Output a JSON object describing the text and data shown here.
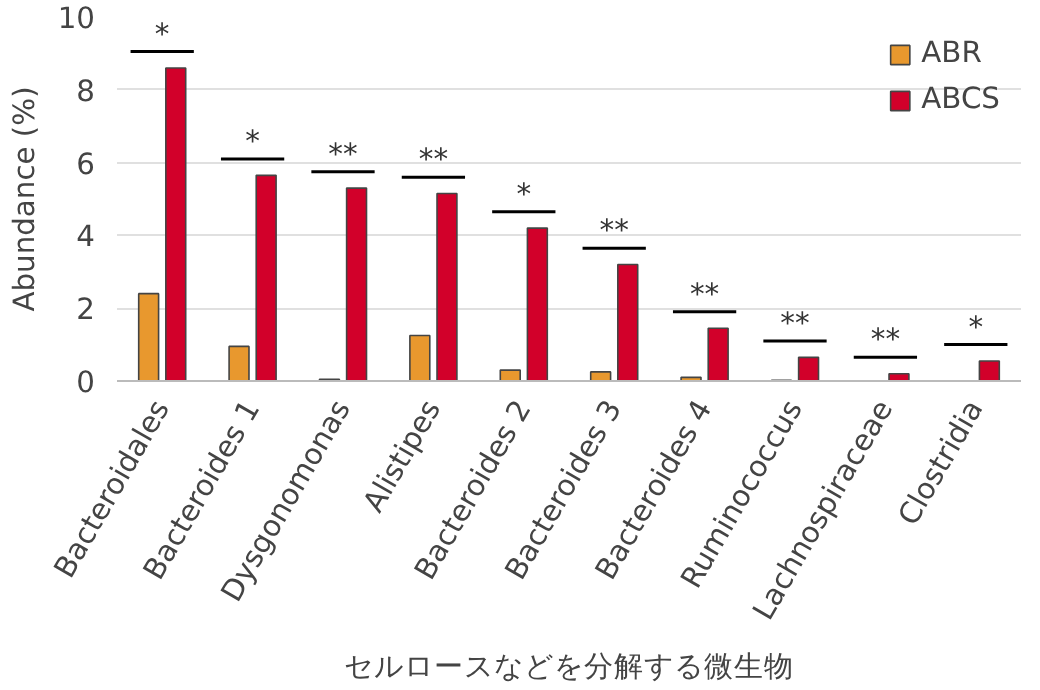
{
  "chart_data": {
    "type": "bar",
    "xlabel": "セルロースなどを分解する微生物",
    "ylabel": "Abundance (%)",
    "categories": [
      "Bacteroidales",
      "Bacteroides 1",
      "Dysgonomonas",
      "Alistipes",
      "Bacteroides 2",
      "Bacteroides 3",
      "Bacteroides 4",
      "Ruminococcus",
      "Lachnospiraceae",
      "Clostridia"
    ],
    "series": [
      {
        "name": "ABR",
        "color": "#e8982e",
        "values": [
          2.4,
          0.95,
          0.05,
          1.25,
          0.3,
          0.25,
          0.1,
          0.02,
          null,
          null
        ]
      },
      {
        "name": "ABCS",
        "color": "#d2002a",
        "values": [
          8.6,
          5.65,
          5.3,
          5.15,
          4.2,
          3.2,
          1.45,
          0.65,
          0.2,
          0.55
        ]
      }
    ],
    "ylim": [
      0,
      10
    ],
    "yticks": [
      0,
      2,
      4,
      6,
      8,
      10
    ],
    "grid": "y",
    "legend": "top right",
    "annotations": [
      "*",
      "*",
      "**",
      "**",
      "*",
      "**",
      "**",
      "**",
      "**",
      "*"
    ]
  }
}
